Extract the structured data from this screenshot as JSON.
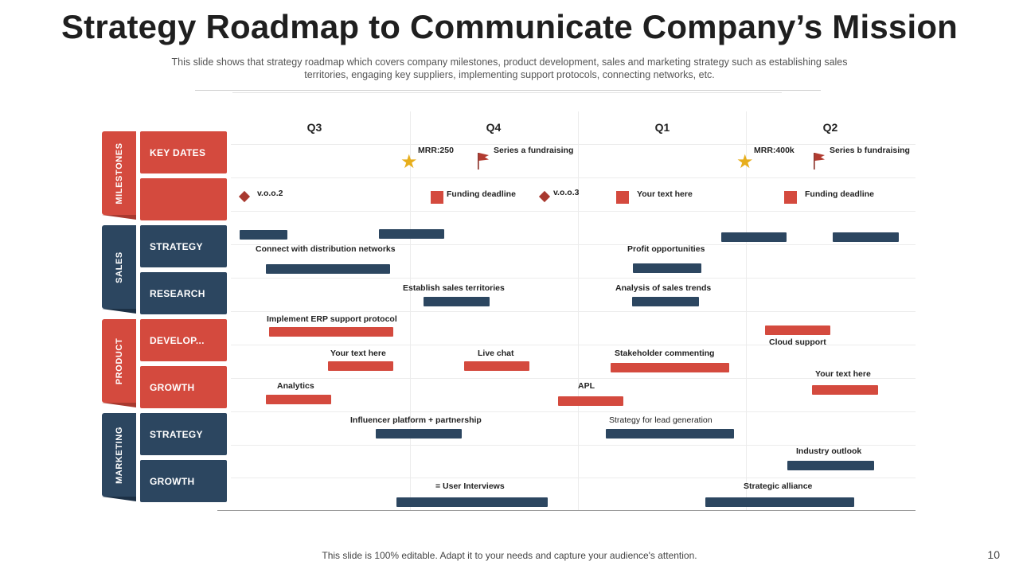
{
  "title": "Strategy Roadmap to Communicate Company’s Mission",
  "subtitle": "This slide shows that strategy roadmap which covers company milestones, product development,  sales and marketing strategy such as establishing sales territories, engaging key suppliers, implementing support protocols, connecting networks, etc.",
  "quarters": [
    "Q3",
    "Q4",
    "Q1",
    "Q2"
  ],
  "categories": [
    "MILESTONES",
    "SALES",
    "PRODUCT",
    "MARKETING"
  ],
  "rows": [
    "KEY DATES",
    "",
    "STRATEGY",
    "RESEARCH",
    "DEVELOP...",
    "GROWTH",
    "STRATEGY",
    "GROWTH"
  ],
  "milestones": {
    "mrr1": "MRR:250",
    "series_a": "Series a fundraising",
    "mrr2": "MRR:400k",
    "series_b": "Series b fundraising",
    "voo2": "v.o.o.2",
    "funding1": "Funding deadline",
    "voo3": "v.o.o.3",
    "your_text": "Your text here",
    "funding2": "Funding deadline"
  },
  "labels": {
    "connect": "Connect with distribution networks",
    "profit": "Profit opportunities",
    "territories": "Establish sales territories",
    "trends": "Analysis of sales trends",
    "erp": "Implement ERP support protocol",
    "cloud": "Cloud support",
    "yt1": "Your text here",
    "livechat": "Live chat",
    "stakeholder": "Stakeholder commenting",
    "yt2": "Your text here",
    "analytics": "Analytics",
    "apl": "APL",
    "influencer": "Influencer platform + partnership",
    "lead": "Strategy for lead generation",
    "industry": "Industry outlook",
    "interviews": "= User Interviews",
    "alliance": "Strategic alliance"
  },
  "colors": {
    "red": "#d44a3e",
    "navy": "#2c4660",
    "gold": "#e7ae1c"
  },
  "footer": "This slide is 100% editable. Adapt it to your needs and capture your audience's attention.",
  "page_number": "10"
}
